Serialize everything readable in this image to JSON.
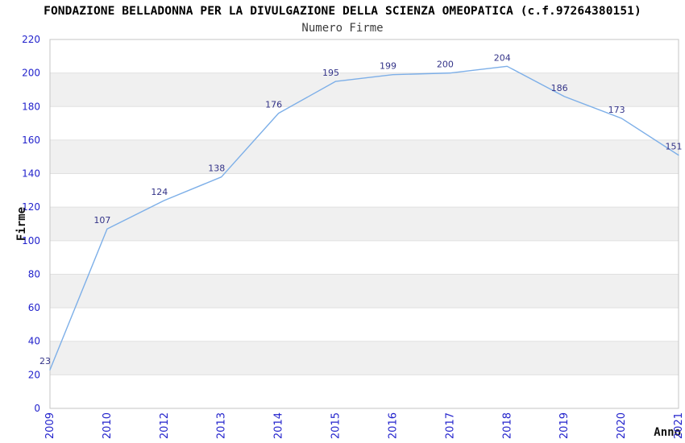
{
  "header": {
    "title": "FONDAZIONE BELLADONNA PER LA DIVULGAZIONE DELLA SCIENZA OMEOPATICA (c.f.97264380151)",
    "subtitle": "Numero Firme"
  },
  "chart_data": {
    "type": "line",
    "title": "FONDAZIONE BELLADONNA PER LA DIVULGAZIONE DELLA SCIENZA OMEOPATICA (c.f.97264380151)",
    "subtitle": "Numero Firme",
    "categories": [
      "2009",
      "2010",
      "2012",
      "2013",
      "2014",
      "2015",
      "2016",
      "2017",
      "2018",
      "2019",
      "2020",
      "2021"
    ],
    "values": [
      23,
      107,
      124,
      138,
      176,
      195,
      199,
      200,
      204,
      186,
      173,
      151
    ],
    "xlabel": "Anno",
    "ylabel": "Firme",
    "ylim": [
      0,
      220
    ],
    "ytick_step": 20,
    "grid": true,
    "legend": false,
    "point_labels_shown": true,
    "alternating_bands": true,
    "colors": {
      "line": "#7dafe8",
      "tick_label": "#2222cc",
      "point_label": "#333388",
      "band": "#f0f0f0",
      "gridline": "#e0e0e0",
      "plot_border": "#c6c6c6",
      "axis_label": "#111111",
      "background": "#ffffff"
    }
  }
}
